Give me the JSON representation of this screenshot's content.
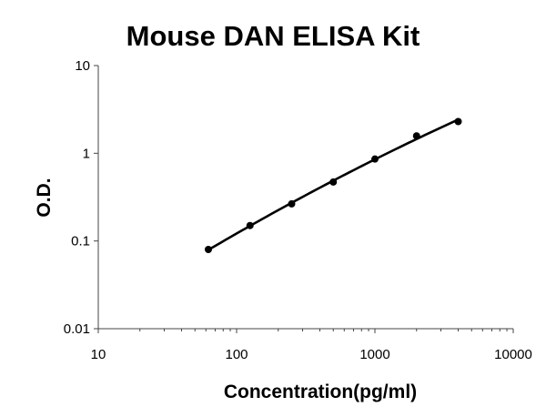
{
  "chart_data": {
    "type": "scatter",
    "title": "Mouse DAN ELISA Kit",
    "xlabel": "Concentration(pg/ml)",
    "ylabel": "O.D.",
    "x_scale": "log",
    "y_scale": "log",
    "xlim": [
      10,
      10000
    ],
    "ylim": [
      0.01,
      10
    ],
    "x_ticks": [
      "10",
      "100",
      "1000",
      "10000"
    ],
    "y_ticks": [
      "0.01",
      "0.1",
      "1",
      "10"
    ],
    "grid": false,
    "legend": "none",
    "series": [
      {
        "points": [
          {
            "x": 62.5,
            "y": 0.08
          },
          {
            "x": 125,
            "y": 0.15
          },
          {
            "x": 250,
            "y": 0.265
          },
          {
            "x": 500,
            "y": 0.47
          },
          {
            "x": 1000,
            "y": 0.86
          },
          {
            "x": 2000,
            "y": 1.58
          },
          {
            "x": 4000,
            "y": 2.3
          }
        ],
        "trendline": true,
        "color": "#000000"
      }
    ]
  }
}
